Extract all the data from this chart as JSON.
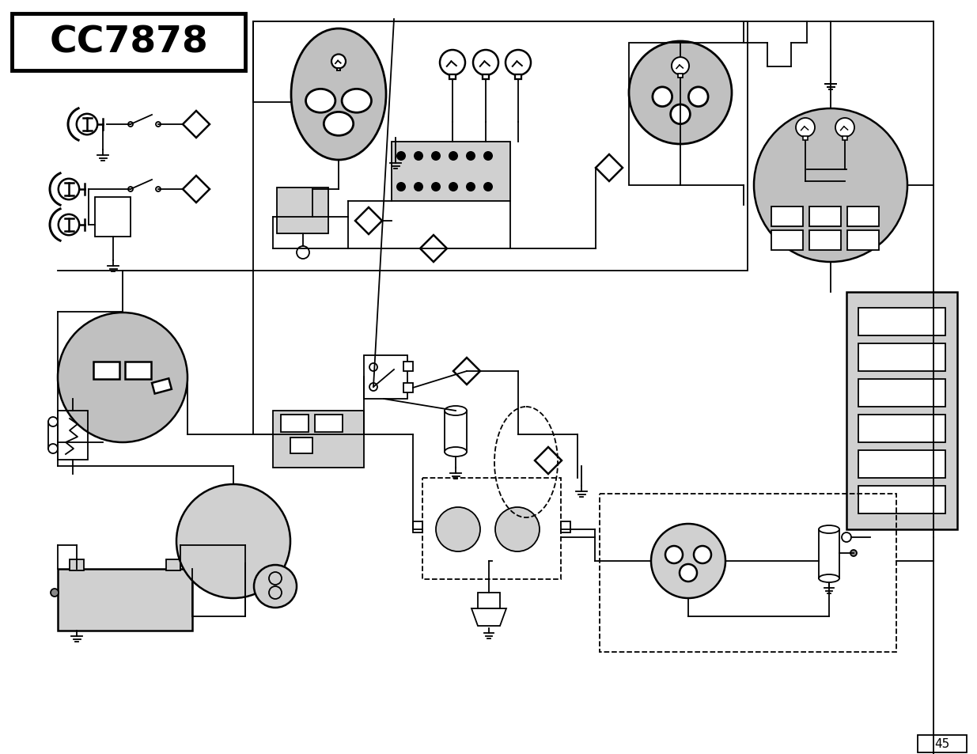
{
  "title": "CC7878",
  "bg_color": "#ffffff",
  "line_color": "#000000",
  "gray_fill": "#c0c0c0",
  "light_gray": "#d0d0d0",
  "page_number": "45",
  "lw_thick": 3.5,
  "lw_med": 1.8,
  "lw_thin": 1.3
}
